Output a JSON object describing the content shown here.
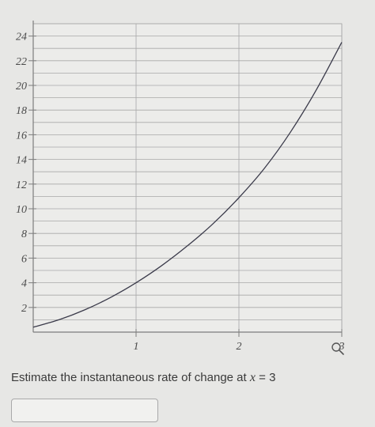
{
  "question": {
    "prefix": "Estimate the instantaneous rate of change at ",
    "variable": "x",
    "equals": " = ",
    "value": "3"
  },
  "answer": {
    "value": "",
    "placeholder": ""
  },
  "chart_data": {
    "type": "line",
    "title": "",
    "xlabel": "",
    "ylabel": "",
    "xlim": [
      0,
      3
    ],
    "ylim": [
      0,
      25
    ],
    "x_ticks": [
      1,
      2,
      3
    ],
    "y_ticks": [
      2,
      4,
      6,
      8,
      10,
      12,
      14,
      16,
      18,
      20,
      22,
      24
    ],
    "y_minor_step": 1,
    "grid": true,
    "series": [
      {
        "x": [
          0,
          0.25,
          0.5,
          0.75,
          1,
          1.25,
          1.5,
          1.75,
          2,
          2.25,
          2.5,
          2.75,
          3
        ],
        "y": [
          0.4,
          1.0,
          1.8,
          2.8,
          4.0,
          5.4,
          7.0,
          8.8,
          10.9,
          13.3,
          16.2,
          19.6,
          23.5
        ]
      }
    ],
    "colors": {
      "curve": "#3a3a4a",
      "grid": "#a8a8a8",
      "axis": "#7d7d7d"
    }
  }
}
